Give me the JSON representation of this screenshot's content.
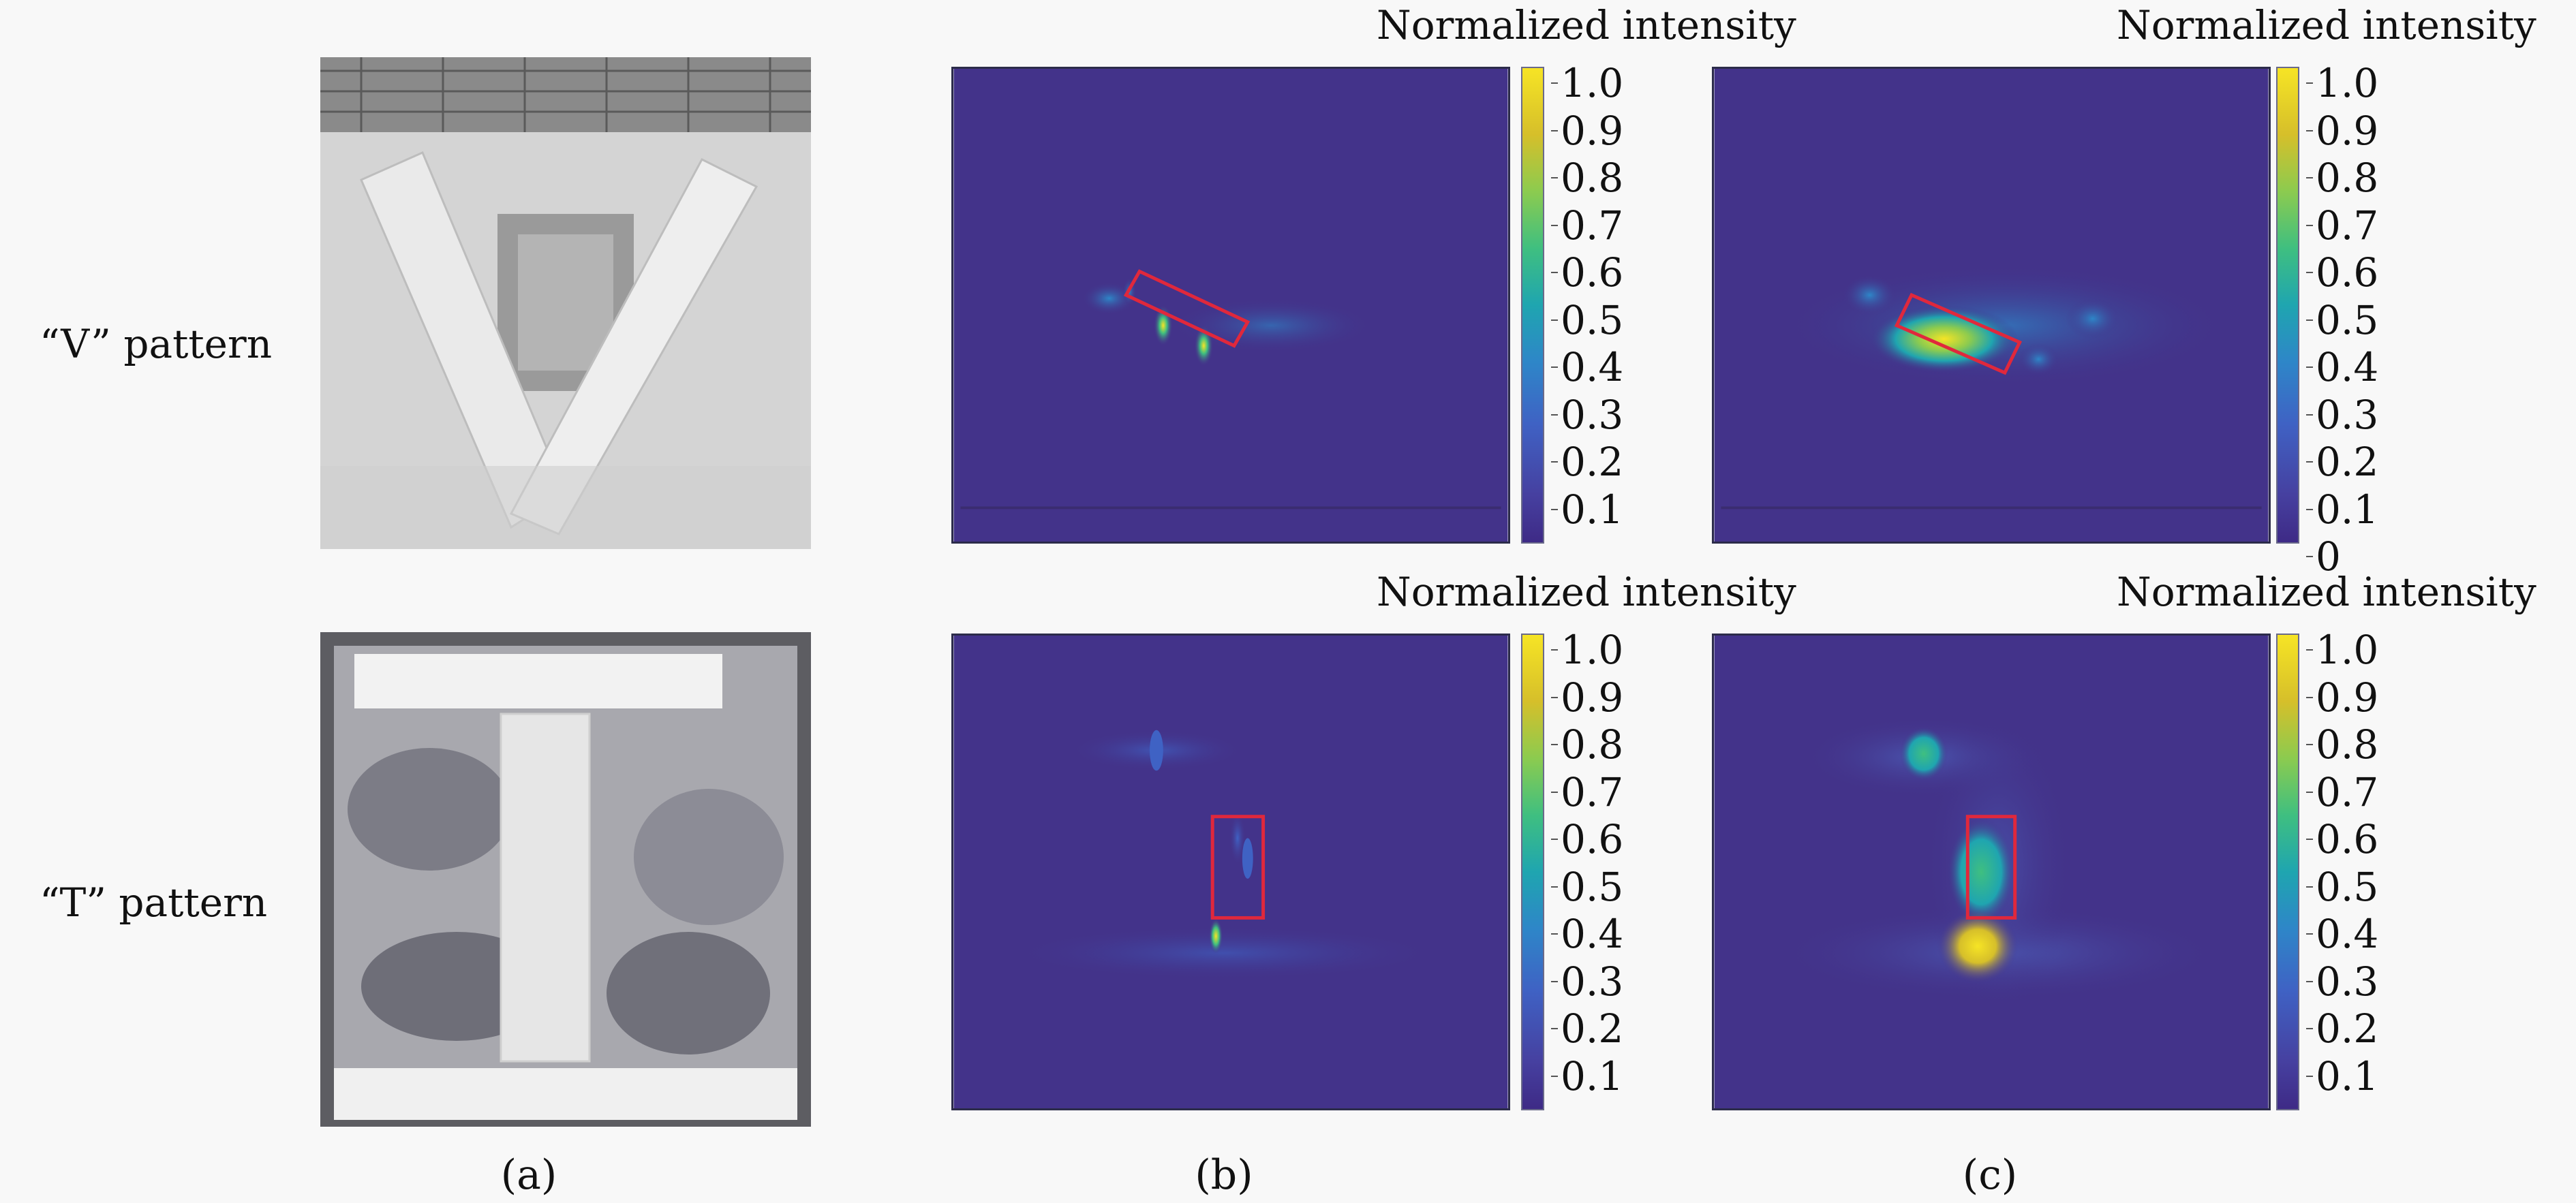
{
  "rows": [
    {
      "label": "“V” pattern"
    },
    {
      "label": "“T” pattern"
    }
  ],
  "panels": [
    "(a)",
    "(b)",
    "(c)"
  ],
  "colorbars": [
    {
      "title": "Normalized intensity",
      "ticks": [
        "1.0",
        "0.9",
        "0.8",
        "0.7",
        "0.6",
        "0.5",
        "0.4",
        "0.3",
        "0.2",
        "0.1"
      ]
    },
    {
      "title": "Normalized intensity",
      "ticks": [
        "1.0",
        "0.9",
        "0.8",
        "0.7",
        "0.6",
        "0.5",
        "0.4",
        "0.3",
        "0.2",
        "0.1",
        "0"
      ]
    },
    {
      "title": "Normalized intensity",
      "ticks": [
        "1.0",
        "0.9",
        "0.8",
        "0.7",
        "0.6",
        "0.5",
        "0.4",
        "0.3",
        "0.2",
        "0.1"
      ]
    },
    {
      "title": "Normalized intensity",
      "ticks": [
        "1.0",
        "0.9",
        "0.8",
        "0.7",
        "0.6",
        "0.5",
        "0.4",
        "0.3",
        "0.2",
        "0.1"
      ]
    }
  ],
  "colors": {
    "heatmap_background": "#43338a",
    "annotation_box": "#e0283c",
    "colormap": [
      "#3e2a86",
      "#3f62c4",
      "#1fa5b0",
      "#3fbf80",
      "#d6bf2a",
      "#f6e425"
    ]
  }
}
